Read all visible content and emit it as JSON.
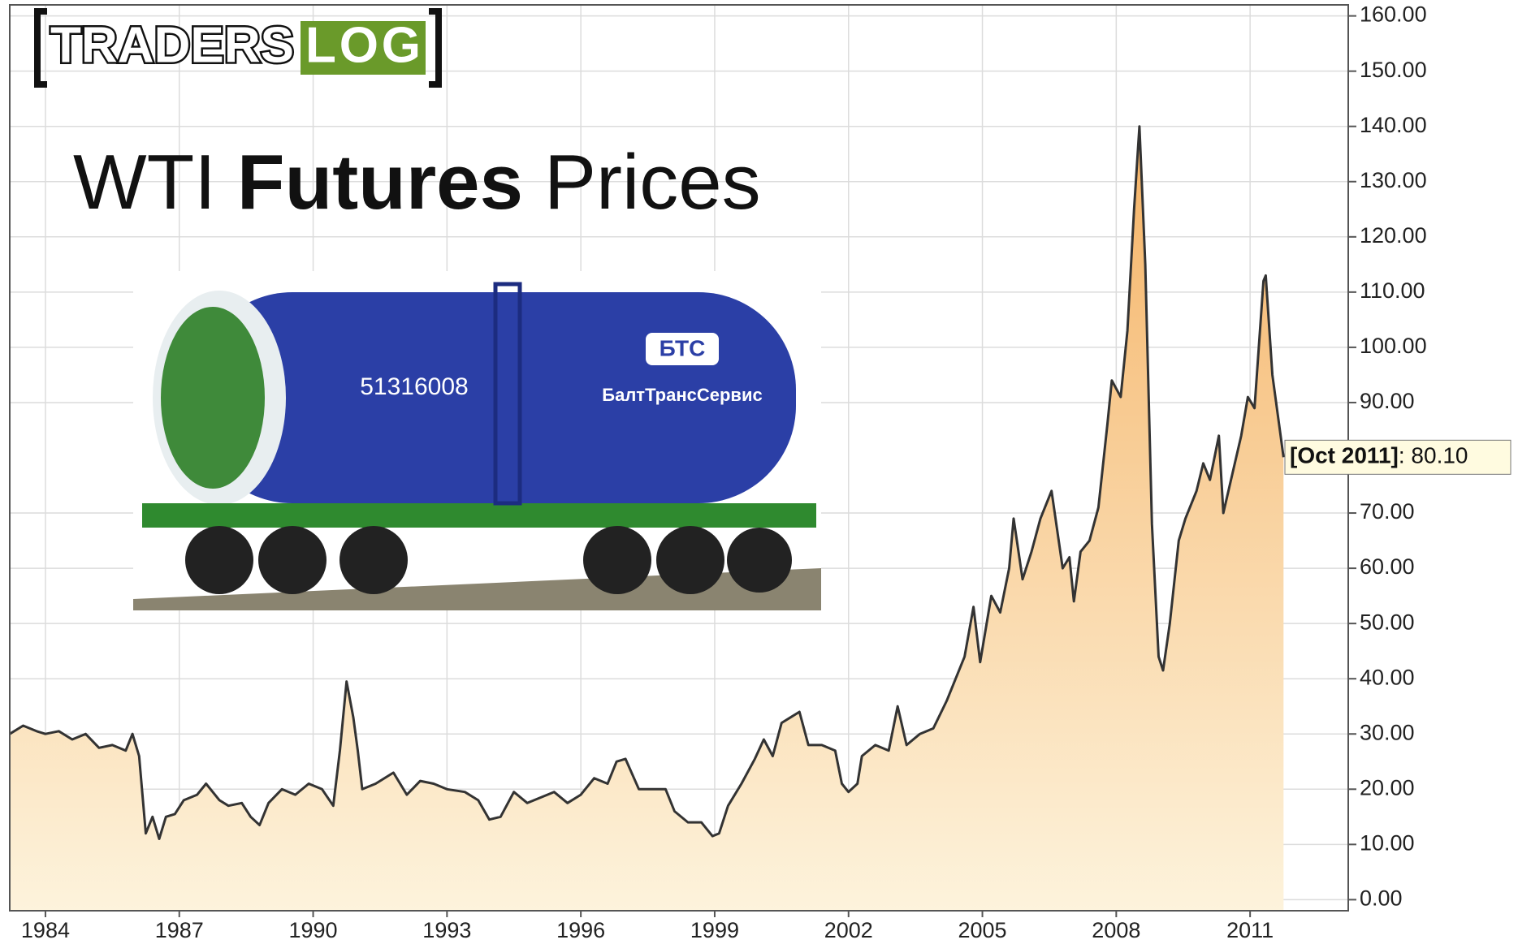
{
  "chart_data": {
    "type": "area",
    "logo": [
      "TRADERS",
      "LOG"
    ],
    "title_parts": [
      "WTI",
      "Futures",
      "Prices"
    ],
    "photo_labels": [
      "БТС",
      "БалтТрансСервис",
      "51316008"
    ],
    "x": [
      1983.2,
      1983.5,
      1983.8,
      1984.0,
      1984.3,
      1984.6,
      1984.9,
      1985.2,
      1985.5,
      1985.8,
      1985.95,
      1986.1,
      1986.25,
      1986.4,
      1986.55,
      1986.7,
      1986.9,
      1987.1,
      1987.4,
      1987.6,
      1987.9,
      1988.1,
      1988.4,
      1988.6,
      1988.8,
      1989.0,
      1989.3,
      1989.6,
      1989.9,
      1990.2,
      1990.45,
      1990.6,
      1990.75,
      1990.9,
      1991.0,
      1991.1,
      1991.4,
      1991.8,
      1992.1,
      1992.4,
      1992.7,
      1993.0,
      1993.4,
      1993.7,
      1993.95,
      1994.2,
      1994.5,
      1994.8,
      1995.1,
      1995.4,
      1995.7,
      1996.0,
      1996.3,
      1996.6,
      1996.8,
      1997.0,
      1997.3,
      1997.6,
      1997.9,
      1998.1,
      1998.4,
      1998.7,
      1998.95,
      1999.1,
      1999.3,
      1999.6,
      1999.9,
      2000.1,
      2000.3,
      2000.5,
      2000.7,
      2000.9,
      2001.1,
      2001.4,
      2001.7,
      2001.85,
      2002.0,
      2002.2,
      2002.3,
      2002.6,
      2002.9,
      2003.1,
      2003.3,
      2003.6,
      2003.9,
      2004.2,
      2004.4,
      2004.6,
      2004.8,
      2004.95,
      2005.2,
      2005.4,
      2005.6,
      2005.7,
      2005.9,
      2006.1,
      2006.3,
      2006.55,
      2006.8,
      2006.95,
      2007.05,
      2007.2,
      2007.4,
      2007.6,
      2007.8,
      2007.9,
      2008.1,
      2008.25,
      2008.4,
      2008.52,
      2008.65,
      2008.8,
      2008.95,
      2009.05,
      2009.2,
      2009.4,
      2009.55,
      2009.8,
      2009.95,
      2010.1,
      2010.3,
      2010.4,
      2010.6,
      2010.8,
      2010.95,
      2011.1,
      2011.3,
      2011.35,
      2011.5,
      2011.65,
      2011.75
    ],
    "series": [
      {
        "color": "#333333",
        "fill_top": "#f5b366",
        "fill_bottom": "#fdf3dc",
        "values": [
          30,
          31.5,
          30.5,
          30,
          30.5,
          29,
          30,
          27.5,
          28,
          27,
          30,
          26,
          12,
          15,
          11,
          15,
          15.5,
          18,
          19,
          21,
          18,
          17,
          17.5,
          15,
          13.5,
          17.5,
          20,
          19,
          21,
          20,
          17,
          27,
          39.5,
          33,
          27,
          20,
          21,
          23,
          19,
          21.5,
          21,
          20,
          19.5,
          18,
          14.5,
          15,
          19.5,
          17.5,
          18.5,
          19.5,
          17.5,
          19,
          22,
          21,
          25,
          25.5,
          20,
          20,
          20,
          16,
          14,
          14,
          11.5,
          12,
          17,
          21,
          25.5,
          29,
          26,
          32,
          33,
          34,
          28,
          28,
          27,
          21,
          19.5,
          21,
          26,
          28,
          27,
          35,
          28,
          30,
          31,
          36,
          40,
          44,
          53,
          43,
          55,
          52,
          60,
          69,
          58,
          63,
          69,
          74,
          60,
          62,
          54,
          63,
          65,
          71,
          86,
          94,
          91,
          103,
          125,
          140,
          115,
          68,
          44,
          41.5,
          50,
          65,
          69,
          74,
          79,
          76,
          84,
          70,
          77,
          84,
          91,
          89,
          112,
          113,
          95,
          86,
          80.1
        ]
      }
    ],
    "last_point": {
      "date": "[Oct 2011]",
      "value": 80.1,
      "value_label": "80.10"
    },
    "xlim": [
      1983.2,
      2013.2
    ],
    "xticks": [
      1984,
      1987,
      1990,
      1993,
      1996,
      1999,
      2002,
      2005,
      2008,
      2011
    ],
    "ylim": [
      -2,
      162
    ],
    "yticks": [
      {
        "value": 0,
        "label": "0.00"
      },
      {
        "value": 10,
        "label": "10.00"
      },
      {
        "value": 20,
        "label": "20.00"
      },
      {
        "value": 30,
        "label": "30.00"
      },
      {
        "value": 40,
        "label": "40.00"
      },
      {
        "value": 50,
        "label": "50.00"
      },
      {
        "value": 60,
        "label": "60.00"
      },
      {
        "value": 70,
        "label": "70.00"
      },
      {
        "value": 90,
        "label": "90.00"
      },
      {
        "value": 100,
        "label": "100.00"
      },
      {
        "value": 110,
        "label": "110.00"
      },
      {
        "value": 120,
        "label": "120.00"
      },
      {
        "value": 130,
        "label": "130.00"
      },
      {
        "value": 140,
        "label": "140.00"
      },
      {
        "value": 150,
        "label": "150.00"
      },
      {
        "value": 160,
        "label": "160.00"
      }
    ],
    "grid": true
  }
}
